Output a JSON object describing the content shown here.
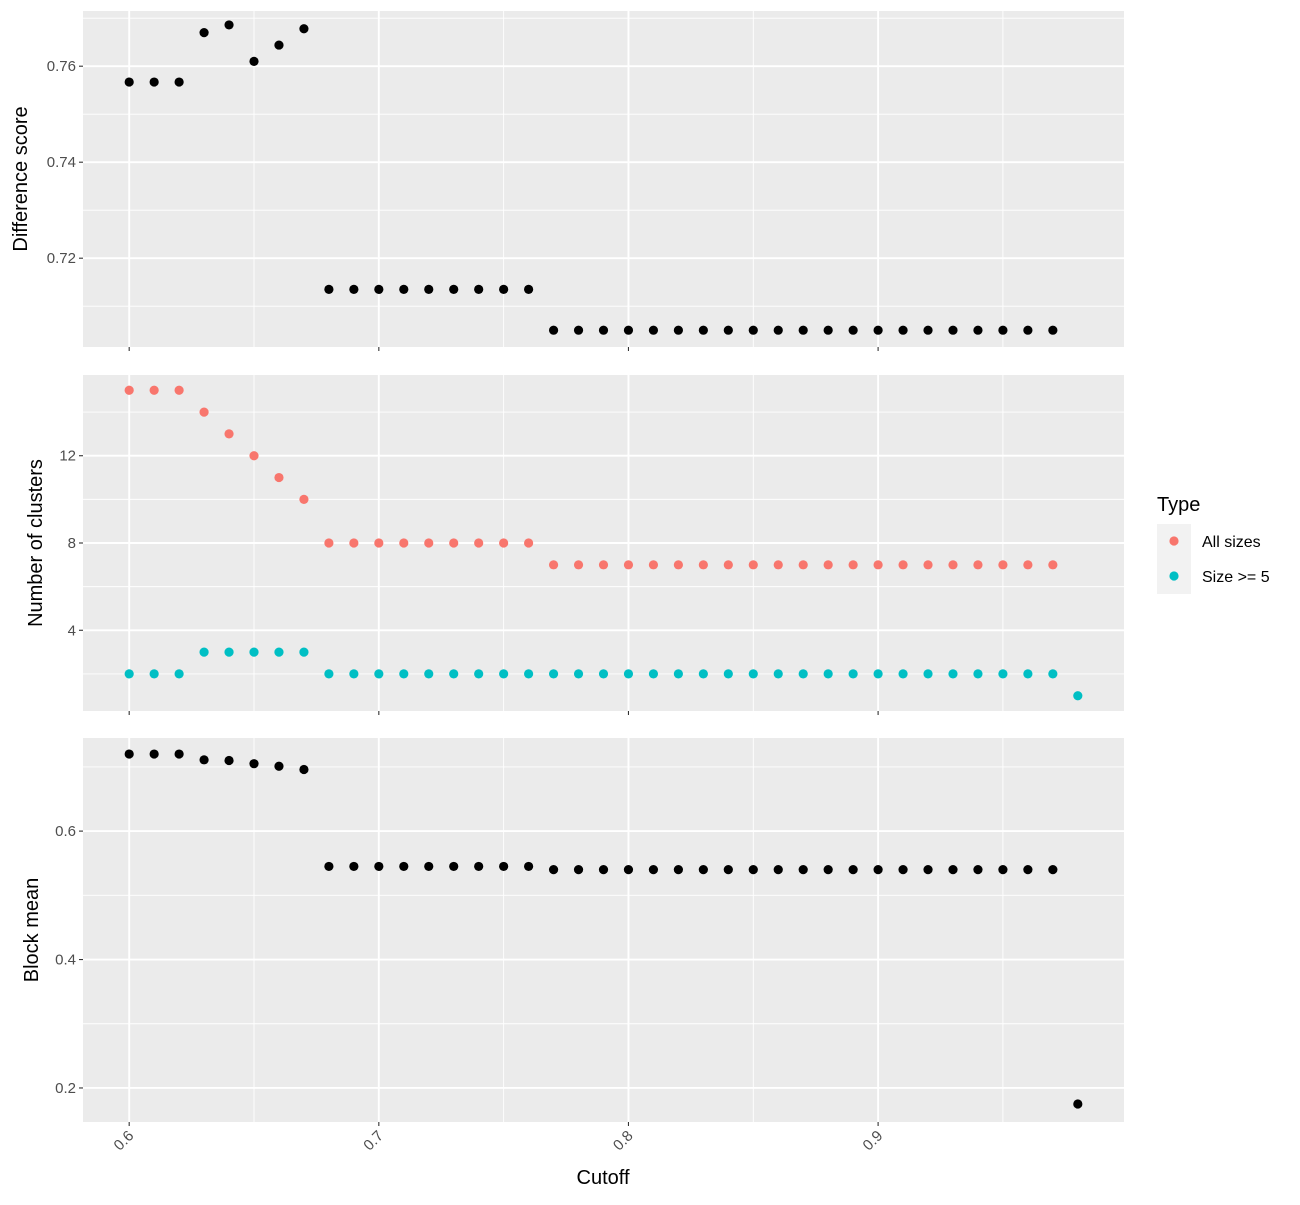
{
  "chart_data": [
    {
      "type": "scatter",
      "ylabel": "Difference score",
      "yticks": [
        0.72,
        0.74,
        0.76
      ],
      "ytick_labels": [
        "0.72",
        "0.74",
        "0.76"
      ],
      "ylim": [
        0.7015,
        0.7715
      ],
      "grid": true,
      "series": [
        {
          "color": "#000000",
          "points": [
            [
              0.6,
              0.7567
            ],
            [
              0.61,
              0.7567
            ],
            [
              0.62,
              0.7567
            ],
            [
              0.63,
              0.767
            ],
            [
              0.64,
              0.7686
            ],
            [
              0.65,
              0.761
            ],
            [
              0.66,
              0.7644
            ],
            [
              0.67,
              0.7678
            ],
            [
              0.68,
              0.7135
            ],
            [
              0.69,
              0.7135
            ],
            [
              0.7,
              0.7135
            ],
            [
              0.71,
              0.7135
            ],
            [
              0.72,
              0.7135
            ],
            [
              0.73,
              0.7135
            ],
            [
              0.74,
              0.7135
            ],
            [
              0.75,
              0.7135
            ],
            [
              0.76,
              0.7135
            ],
            [
              0.77,
              0.705
            ],
            [
              0.78,
              0.705
            ],
            [
              0.79,
              0.705
            ],
            [
              0.8,
              0.705
            ],
            [
              0.81,
              0.705
            ],
            [
              0.82,
              0.705
            ],
            [
              0.83,
              0.705
            ],
            [
              0.84,
              0.705
            ],
            [
              0.85,
              0.705
            ],
            [
              0.86,
              0.705
            ],
            [
              0.87,
              0.705
            ],
            [
              0.88,
              0.705
            ],
            [
              0.89,
              0.705
            ],
            [
              0.9,
              0.705
            ],
            [
              0.91,
              0.705
            ],
            [
              0.92,
              0.705
            ],
            [
              0.93,
              0.705
            ],
            [
              0.94,
              0.705
            ],
            [
              0.95,
              0.705
            ],
            [
              0.96,
              0.705
            ],
            [
              0.97,
              0.705
            ]
          ]
        }
      ]
    },
    {
      "type": "scatter",
      "ylabel": "Number of clusters",
      "yticks": [
        4,
        8,
        12
      ],
      "ytick_labels": [
        "4",
        "8",
        "12"
      ],
      "ylim": [
        0.3,
        15.7
      ],
      "grid": true,
      "series": [
        {
          "name": "All sizes",
          "color": "#F8766D",
          "points": [
            [
              0.6,
              15
            ],
            [
              0.61,
              15
            ],
            [
              0.62,
              15
            ],
            [
              0.63,
              14
            ],
            [
              0.64,
              13
            ],
            [
              0.65,
              12
            ],
            [
              0.66,
              11
            ],
            [
              0.67,
              10
            ],
            [
              0.68,
              8
            ],
            [
              0.69,
              8
            ],
            [
              0.7,
              8
            ],
            [
              0.71,
              8
            ],
            [
              0.72,
              8
            ],
            [
              0.73,
              8
            ],
            [
              0.74,
              8
            ],
            [
              0.75,
              8
            ],
            [
              0.76,
              8
            ],
            [
              0.77,
              7
            ],
            [
              0.78,
              7
            ],
            [
              0.79,
              7
            ],
            [
              0.8,
              7
            ],
            [
              0.81,
              7
            ],
            [
              0.82,
              7
            ],
            [
              0.83,
              7
            ],
            [
              0.84,
              7
            ],
            [
              0.85,
              7
            ],
            [
              0.86,
              7
            ],
            [
              0.87,
              7
            ],
            [
              0.88,
              7
            ],
            [
              0.89,
              7
            ],
            [
              0.9,
              7
            ],
            [
              0.91,
              7
            ],
            [
              0.92,
              7
            ],
            [
              0.93,
              7
            ],
            [
              0.94,
              7
            ],
            [
              0.95,
              7
            ],
            [
              0.96,
              7
            ],
            [
              0.97,
              7
            ]
          ]
        },
        {
          "name": "Size >= 5",
          "color": "#00BFC4",
          "points": [
            [
              0.6,
              2
            ],
            [
              0.61,
              2
            ],
            [
              0.62,
              2
            ],
            [
              0.63,
              3
            ],
            [
              0.64,
              3
            ],
            [
              0.65,
              3
            ],
            [
              0.66,
              3
            ],
            [
              0.67,
              3
            ],
            [
              0.68,
              2
            ],
            [
              0.69,
              2
            ],
            [
              0.7,
              2
            ],
            [
              0.71,
              2
            ],
            [
              0.72,
              2
            ],
            [
              0.73,
              2
            ],
            [
              0.74,
              2
            ],
            [
              0.75,
              2
            ],
            [
              0.76,
              2
            ],
            [
              0.77,
              2
            ],
            [
              0.78,
              2
            ],
            [
              0.79,
              2
            ],
            [
              0.8,
              2
            ],
            [
              0.81,
              2
            ],
            [
              0.82,
              2
            ],
            [
              0.83,
              2
            ],
            [
              0.84,
              2
            ],
            [
              0.85,
              2
            ],
            [
              0.86,
              2
            ],
            [
              0.87,
              2
            ],
            [
              0.88,
              2
            ],
            [
              0.89,
              2
            ],
            [
              0.9,
              2
            ],
            [
              0.91,
              2
            ],
            [
              0.92,
              2
            ],
            [
              0.93,
              2
            ],
            [
              0.94,
              2
            ],
            [
              0.95,
              2
            ],
            [
              0.96,
              2
            ],
            [
              0.97,
              2
            ],
            [
              0.98,
              1
            ]
          ]
        }
      ]
    },
    {
      "type": "scatter",
      "ylabel": "Block mean",
      "yticks": [
        0.2,
        0.4,
        0.6
      ],
      "ytick_labels": [
        "0.2",
        "0.4",
        "0.6"
      ],
      "ylim": [
        0.147,
        0.745
      ],
      "grid": true,
      "series": [
        {
          "color": "#000000",
          "points": [
            [
              0.6,
              0.72
            ],
            [
              0.61,
              0.72
            ],
            [
              0.62,
              0.72
            ],
            [
              0.63,
              0.711
            ],
            [
              0.64,
              0.71
            ],
            [
              0.65,
              0.705
            ],
            [
              0.66,
              0.701
            ],
            [
              0.67,
              0.696
            ],
            [
              0.68,
              0.545
            ],
            [
              0.69,
              0.545
            ],
            [
              0.7,
              0.545
            ],
            [
              0.71,
              0.545
            ],
            [
              0.72,
              0.545
            ],
            [
              0.73,
              0.545
            ],
            [
              0.74,
              0.545
            ],
            [
              0.75,
              0.545
            ],
            [
              0.76,
              0.545
            ],
            [
              0.77,
              0.54
            ],
            [
              0.78,
              0.54
            ],
            [
              0.79,
              0.54
            ],
            [
              0.8,
              0.54
            ],
            [
              0.81,
              0.54
            ],
            [
              0.82,
              0.54
            ],
            [
              0.83,
              0.54
            ],
            [
              0.84,
              0.54
            ],
            [
              0.85,
              0.54
            ],
            [
              0.86,
              0.54
            ],
            [
              0.87,
              0.54
            ],
            [
              0.88,
              0.54
            ],
            [
              0.89,
              0.54
            ],
            [
              0.9,
              0.54
            ],
            [
              0.91,
              0.54
            ],
            [
              0.92,
              0.54
            ],
            [
              0.93,
              0.54
            ],
            [
              0.94,
              0.54
            ],
            [
              0.95,
              0.54
            ],
            [
              0.96,
              0.54
            ],
            [
              0.97,
              0.54
            ],
            [
              0.98,
              0.175
            ]
          ]
        }
      ]
    }
  ],
  "xaxis": {
    "label": "Cutoff",
    "xlim": [
      0.5815,
      0.9985
    ],
    "ticks": [
      0.6,
      0.7,
      0.8,
      0.9
    ],
    "tick_labels": [
      "0.6",
      "0.7",
      "0.8",
      "0.9"
    ],
    "tick_label_rotation": -45
  },
  "legend": {
    "title": "Type",
    "placement": "right",
    "entries": [
      {
        "label": "All sizes",
        "color": "#F8766D"
      },
      {
        "label": "Size >= 5",
        "color": "#00BFC4"
      }
    ]
  },
  "theme": {
    "panel_background": "#EBEBEB",
    "grid_color": "#FFFFFF",
    "tick_color": "#333333",
    "tick_label_color": "#4D4D4D",
    "title_color": "#000000"
  }
}
